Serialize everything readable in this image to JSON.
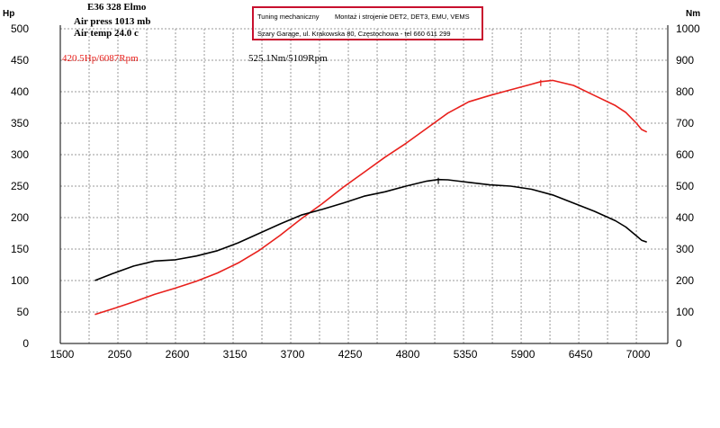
{
  "header": {
    "title": "E36 328 Elmo",
    "air_press": "Air press  1013 mb",
    "air_temp": "Air temp  24.0 c"
  },
  "infobox": {
    "line1_left": "Tuning mechaniczny",
    "line1_right": "Montaż i strojenie DET2, DET3, EMU, VEMS",
    "line2": "Szary Garage, ul. Krakowska 80, Częstochowa - tel 660 611 299"
  },
  "annotations": {
    "power_peak": "420.5Hp/6087Rpm",
    "torque_peak": "525.1Nm/5109Rpm"
  },
  "colors": {
    "power": "#e8201c",
    "torque": "#000000",
    "grid": "#999999",
    "box_border": "#c8102e"
  },
  "chart_data": {
    "type": "line",
    "xlabel": "",
    "ylabel_left": "Hp",
    "ylabel_right": "Nm",
    "xlim": [
      1500,
      7300
    ],
    "ylim_left": [
      0,
      500
    ],
    "ylim_right": [
      0,
      1000
    ],
    "x_ticks": [
      1500,
      2050,
      2600,
      3150,
      3700,
      4250,
      4800,
      5350,
      5900,
      6450,
      7000
    ],
    "y_ticks_left": [
      0,
      50,
      100,
      150,
      200,
      250,
      300,
      350,
      400,
      450,
      500
    ],
    "y_ticks_right": [
      0,
      100,
      200,
      300,
      400,
      500,
      600,
      700,
      800,
      900,
      1000
    ],
    "grid": true,
    "series": [
      {
        "name": "Power",
        "axis": "left",
        "color": "#e8201c",
        "x": [
          1830,
          2000,
          2200,
          2400,
          2600,
          2800,
          3000,
          3200,
          3400,
          3600,
          3700,
          3800,
          4000,
          4200,
          4400,
          4600,
          4800,
          5000,
          5200,
          5400,
          5600,
          5800,
          6000,
          6087,
          6200,
          6400,
          6600,
          6800,
          6900,
          7000,
          7050,
          7100
        ],
        "y": [
          46,
          55,
          66,
          78,
          88,
          99,
          112,
          128,
          148,
          172,
          185,
          198,
          222,
          248,
          272,
          296,
          318,
          342,
          366,
          384,
          394,
          403,
          412,
          416,
          418,
          410,
          394,
          378,
          367,
          350,
          340,
          336
        ]
      },
      {
        "name": "Torque",
        "axis": "right",
        "color": "#000000",
        "x": [
          1830,
          2000,
          2200,
          2400,
          2600,
          2800,
          3000,
          3200,
          3400,
          3600,
          3700,
          3800,
          4000,
          4200,
          4400,
          4600,
          4800,
          5000,
          5109,
          5200,
          5400,
          5600,
          5800,
          6000,
          6200,
          6400,
          6600,
          6800,
          6900,
          7000,
          7050,
          7100
        ],
        "y": [
          200,
          222,
          246,
          262,
          266,
          278,
          295,
          320,
          350,
          380,
          394,
          408,
          426,
          446,
          468,
          482,
          500,
          516,
          521,
          520,
          512,
          504,
          500,
          490,
          472,
          446,
          420,
          390,
          370,
          342,
          328,
          322
        ]
      }
    ],
    "markers": [
      {
        "series": "Power",
        "x": 6087,
        "y": 416
      },
      {
        "series": "Torque",
        "x": 5109,
        "y": 521
      }
    ]
  }
}
